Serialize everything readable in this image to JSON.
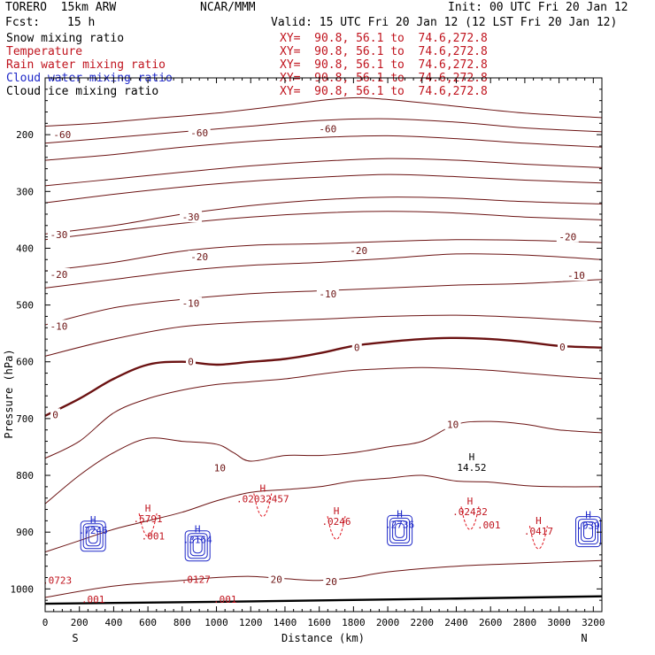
{
  "header": {
    "model": "TORERO  15km ARW",
    "center": "NCAR/MMM",
    "init": "Init: 00 UTC Fri 20 Jan 12",
    "fcst_label": "Fcst:",
    "fcst_value": "15 h",
    "valid": "Valid: 15 UTC Fri 20 Jan 12 (12 LST Fri 20 Jan 12)"
  },
  "legend": [
    {
      "label": "Snow mixing ratio",
      "color": "#000000",
      "xy": "XY=  90.8, 56.1 to  74.6,272.8"
    },
    {
      "label": "Temperature",
      "color": "#c0141e",
      "xy": "XY=  90.8, 56.1 to  74.6,272.8"
    },
    {
      "label": "Rain water mixing ratio",
      "color": "#c0141e",
      "xy": "XY=  90.8, 56.1 to  74.6,272.8"
    },
    {
      "label": "Cloud water mixing ratio",
      "color": "#1e28c8",
      "xy": "XY=  90.8, 56.1 to  74.6,272.8"
    },
    {
      "label": "Cloud ice mixing ratio",
      "color": "#000000",
      "xy": "XY=  90.8, 56.1 to  74.6,272.8"
    }
  ],
  "chart_data": {
    "type": "line",
    "title": "Vertical cross section: temperature and hydrometeor mixing ratios",
    "xlabel": "Distance (km)",
    "ylabel": "Pressure (hPa)",
    "xlim": [
      0,
      3250
    ],
    "ylim": [
      100,
      1040
    ],
    "x_ticks": [
      "0",
      "200",
      "400",
      "600",
      "800",
      "1000",
      "1200",
      "1400",
      "1600",
      "1800",
      "2000",
      "2200",
      "2400",
      "2600",
      "2800",
      "3000",
      "3200"
    ],
    "y_ticks": [
      "100",
      "200",
      "300",
      "400",
      "500",
      "600",
      "700",
      "800",
      "900",
      "1000"
    ],
    "x_end_labels": {
      "left": "S",
      "right": "N"
    },
    "temperature_isotherms": [
      {
        "level": -60,
        "points": [
          [
            0,
            185
          ],
          [
            300,
            180
          ],
          [
            600,
            172
          ],
          [
            1000,
            162
          ],
          [
            1400,
            148
          ],
          [
            1600,
            140
          ],
          [
            1800,
            135
          ],
          [
            2000,
            138
          ],
          [
            2400,
            150
          ],
          [
            2800,
            162
          ],
          [
            3250,
            170
          ]
        ]
      },
      {
        "level": -55,
        "points": [
          [
            0,
            215
          ],
          [
            400,
            205
          ],
          [
            800,
            195
          ],
          [
            1200,
            185
          ],
          [
            1600,
            175
          ],
          [
            2000,
            172
          ],
          [
            2400,
            178
          ],
          [
            2800,
            188
          ],
          [
            3250,
            195
          ]
        ]
      },
      {
        "level": -50,
        "points": [
          [
            0,
            245
          ],
          [
            400,
            235
          ],
          [
            800,
            222
          ],
          [
            1200,
            212
          ],
          [
            1600,
            205
          ],
          [
            2000,
            202
          ],
          [
            2400,
            207
          ],
          [
            2800,
            215
          ],
          [
            3250,
            222
          ]
        ]
      },
      {
        "level": -40,
        "points": [
          [
            0,
            290
          ],
          [
            400,
            278
          ],
          [
            800,
            266
          ],
          [
            1200,
            255
          ],
          [
            1600,
            247
          ],
          [
            2000,
            242
          ],
          [
            2400,
            245
          ],
          [
            2800,
            252
          ],
          [
            3250,
            258
          ]
        ]
      },
      {
        "level": -35,
        "points": [
          [
            0,
            320
          ],
          [
            400,
            305
          ],
          [
            800,
            292
          ],
          [
            1200,
            282
          ],
          [
            1600,
            275
          ],
          [
            2000,
            270
          ],
          [
            2400,
            274
          ],
          [
            2800,
            280
          ],
          [
            3250,
            285
          ]
        ]
      },
      {
        "level": -30,
        "points": [
          [
            0,
            375
          ],
          [
            400,
            360
          ],
          [
            800,
            340
          ],
          [
            1200,
            325
          ],
          [
            1600,
            315
          ],
          [
            2000,
            310
          ],
          [
            2400,
            312
          ],
          [
            2800,
            318
          ],
          [
            3250,
            322
          ]
        ]
      },
      {
        "level": -25,
        "points": [
          [
            0,
            385
          ],
          [
            400,
            370
          ],
          [
            800,
            356
          ],
          [
            1200,
            345
          ],
          [
            1600,
            338
          ],
          [
            2000,
            335
          ],
          [
            2400,
            338
          ],
          [
            2800,
            345
          ],
          [
            3250,
            350
          ]
        ]
      },
      {
        "level": -20,
        "points": [
          [
            0,
            440
          ],
          [
            400,
            425
          ],
          [
            800,
            405
          ],
          [
            1200,
            395
          ],
          [
            1600,
            392
          ],
          [
            2000,
            388
          ],
          [
            2400,
            385
          ],
          [
            2800,
            386
          ],
          [
            3250,
            390
          ]
        ]
      },
      {
        "level": -15,
        "points": [
          [
            0,
            470
          ],
          [
            400,
            455
          ],
          [
            800,
            440
          ],
          [
            1200,
            430
          ],
          [
            1600,
            425
          ],
          [
            2000,
            418
          ],
          [
            2400,
            410
          ],
          [
            2800,
            412
          ],
          [
            3250,
            420
          ]
        ]
      },
      {
        "level": -10,
        "points": [
          [
            0,
            535
          ],
          [
            400,
            505
          ],
          [
            800,
            490
          ],
          [
            1200,
            480
          ],
          [
            1600,
            475
          ],
          [
            2000,
            470
          ],
          [
            2400,
            465
          ],
          [
            2800,
            462
          ],
          [
            3250,
            455
          ]
        ]
      },
      {
        "level": -5,
        "points": [
          [
            0,
            590
          ],
          [
            400,
            560
          ],
          [
            800,
            538
          ],
          [
            1200,
            530
          ],
          [
            1600,
            525
          ],
          [
            2000,
            520
          ],
          [
            2400,
            518
          ],
          [
            2800,
            522
          ],
          [
            3250,
            530
          ]
        ]
      },
      {
        "level": 0,
        "points": [
          [
            0,
            695
          ],
          [
            200,
            665
          ],
          [
            400,
            630
          ],
          [
            600,
            605
          ],
          [
            800,
            600
          ],
          [
            1000,
            605
          ],
          [
            1200,
            600
          ],
          [
            1400,
            595
          ],
          [
            1600,
            585
          ],
          [
            1800,
            572
          ],
          [
            2000,
            565
          ],
          [
            2200,
            560
          ],
          [
            2400,
            558
          ],
          [
            2600,
            560
          ],
          [
            2800,
            565
          ],
          [
            3000,
            572
          ],
          [
            3250,
            575
          ]
        ]
      },
      {
        "level": 5,
        "points": [
          [
            0,
            770
          ],
          [
            200,
            740
          ],
          [
            400,
            690
          ],
          [
            600,
            665
          ],
          [
            800,
            650
          ],
          [
            1000,
            640
          ],
          [
            1200,
            635
          ],
          [
            1400,
            630
          ],
          [
            1600,
            622
          ],
          [
            1800,
            615
          ],
          [
            2000,
            612
          ],
          [
            2200,
            610
          ],
          [
            2400,
            612
          ],
          [
            2600,
            615
          ],
          [
            2800,
            620
          ],
          [
            3000,
            625
          ],
          [
            3250,
            630
          ]
        ]
      },
      {
        "level": 10,
        "points": [
          [
            0,
            850
          ],
          [
            200,
            800
          ],
          [
            400,
            760
          ],
          [
            600,
            735
          ],
          [
            800,
            740
          ],
          [
            1000,
            745
          ],
          [
            1100,
            760
          ],
          [
            1200,
            775
          ],
          [
            1400,
            765
          ],
          [
            1600,
            765
          ],
          [
            1800,
            760
          ],
          [
            2000,
            750
          ],
          [
            2200,
            740
          ],
          [
            2400,
            710
          ],
          [
            2600,
            705
          ],
          [
            2800,
            710
          ],
          [
            3000,
            720
          ],
          [
            3250,
            725
          ]
        ]
      },
      {
        "level": 15,
        "points": [
          [
            0,
            935
          ],
          [
            200,
            915
          ],
          [
            400,
            895
          ],
          [
            600,
            880
          ],
          [
            800,
            865
          ],
          [
            1000,
            845
          ],
          [
            1200,
            830
          ],
          [
            1400,
            825
          ],
          [
            1600,
            820
          ],
          [
            1800,
            810
          ],
          [
            2000,
            805
          ],
          [
            2200,
            800
          ],
          [
            2400,
            810
          ],
          [
            2600,
            812
          ],
          [
            2800,
            818
          ],
          [
            3000,
            820
          ],
          [
            3250,
            820
          ]
        ]
      },
      {
        "level": 20,
        "points": [
          [
            0,
            1015
          ],
          [
            400,
            995
          ],
          [
            800,
            985
          ],
          [
            1000,
            980
          ],
          [
            1200,
            978
          ],
          [
            1400,
            982
          ],
          [
            1600,
            985
          ],
          [
            1800,
            980
          ],
          [
            2000,
            970
          ],
          [
            2400,
            960
          ],
          [
            2800,
            955
          ],
          [
            3250,
            950
          ]
        ]
      }
    ],
    "contour_labels": [
      {
        "text": "-60",
        "x": 100,
        "y": 200,
        "color": "#6b1212"
      },
      {
        "text": "-60",
        "x": 900,
        "y": 197,
        "color": "#6b1212"
      },
      {
        "text": "-60",
        "x": 1650,
        "y": 190,
        "color": "#6b1212"
      },
      {
        "text": "-30",
        "x": 850,
        "y": 345,
        "color": "#6b1212"
      },
      {
        "text": "-30",
        "x": 80,
        "y": 376,
        "color": "#6b1212"
      },
      {
        "text": "-20",
        "x": 900,
        "y": 415,
        "color": "#6b1212"
      },
      {
        "text": "-20",
        "x": 1830,
        "y": 404,
        "color": "#6b1212"
      },
      {
        "text": "-20",
        "x": 80,
        "y": 446,
        "color": "#6b1212"
      },
      {
        "text": "-20",
        "x": 3050,
        "y": 380,
        "color": "#6b1212"
      },
      {
        "text": "-10",
        "x": 850,
        "y": 497,
        "color": "#6b1212"
      },
      {
        "text": "-10",
        "x": 1650,
        "y": 480,
        "color": "#6b1212"
      },
      {
        "text": "-10",
        "x": 80,
        "y": 537,
        "color": "#6b1212"
      },
      {
        "text": "-10",
        "x": 3100,
        "y": 448,
        "color": "#6b1212"
      },
      {
        "text": "0",
        "x": 850,
        "y": 600,
        "color": "#6b1212"
      },
      {
        "text": "0",
        "x": 1820,
        "y": 575,
        "color": "#6b1212"
      },
      {
        "text": "0",
        "x": 3020,
        "y": 574,
        "color": "#6b1212"
      },
      {
        "text": "0",
        "x": 60,
        "y": 693,
        "color": "#6b1212"
      },
      {
        "text": "10",
        "x": 2380,
        "y": 710,
        "color": "#6b1212"
      },
      {
        "text": "10",
        "x": 1020,
        "y": 787,
        "color": "#6b1212"
      },
      {
        "text": "20",
        "x": 1350,
        "y": 983,
        "color": "#6b1212"
      },
      {
        "text": "20",
        "x": 1670,
        "y": 987,
        "color": "#6b1212"
      }
    ],
    "maxima_labels": [
      {
        "mark": "H",
        "value": ".7246",
        "x": 280,
        "y": 890,
        "color": "#1e28c8"
      },
      {
        "mark": "H",
        "value": ".039",
        "x": 3170,
        "y": 882,
        "color": "#1e28c8"
      },
      {
        "mark": "H",
        "value": ".2736",
        "x": 2070,
        "y": 880,
        "color": "#1e28c8"
      },
      {
        "mark": "H",
        "value": ".3164",
        "x": 890,
        "y": 907,
        "color": "#1e28c8"
      },
      {
        "mark": "H",
        "value": "14.52",
        "x": 2490,
        "y": 780,
        "color": "#000000"
      },
      {
        "mark": "H",
        "value": ".5791",
        "x": 600,
        "y": 870,
        "color": "#c0141e"
      },
      {
        "mark": "H",
        "value": ".02032457",
        "x": 1270,
        "y": 835,
        "color": "#c0141e"
      },
      {
        "mark": "H",
        "value": ".0246",
        "x": 1700,
        "y": 875,
        "color": "#c0141e"
      },
      {
        "mark": "H",
        "value": ".02432",
        "x": 2480,
        "y": 858,
        "color": "#c0141e"
      },
      {
        "mark": "H",
        "value": ".0417",
        "x": 2880,
        "y": 892,
        "color": "#c0141e"
      }
    ],
    "threshold_labels": [
      {
        "text": ".001",
        "x": 630,
        "y": 907,
        "color": "#c0141e"
      },
      {
        "text": ".001",
        "x": 1050,
        "y": 1018,
        "color": "#c0141e"
      },
      {
        "text": ".001",
        "x": 2590,
        "y": 887,
        "color": "#c0141e"
      },
      {
        "text": ".001",
        "x": 280,
        "y": 1018,
        "color": "#c0141e"
      },
      {
        "text": ".0127",
        "x": 880,
        "y": 983,
        "color": "#c0141e"
      },
      {
        "text": ".0723",
        "x": 70,
        "y": 985,
        "color": "#c0141e"
      }
    ]
  }
}
